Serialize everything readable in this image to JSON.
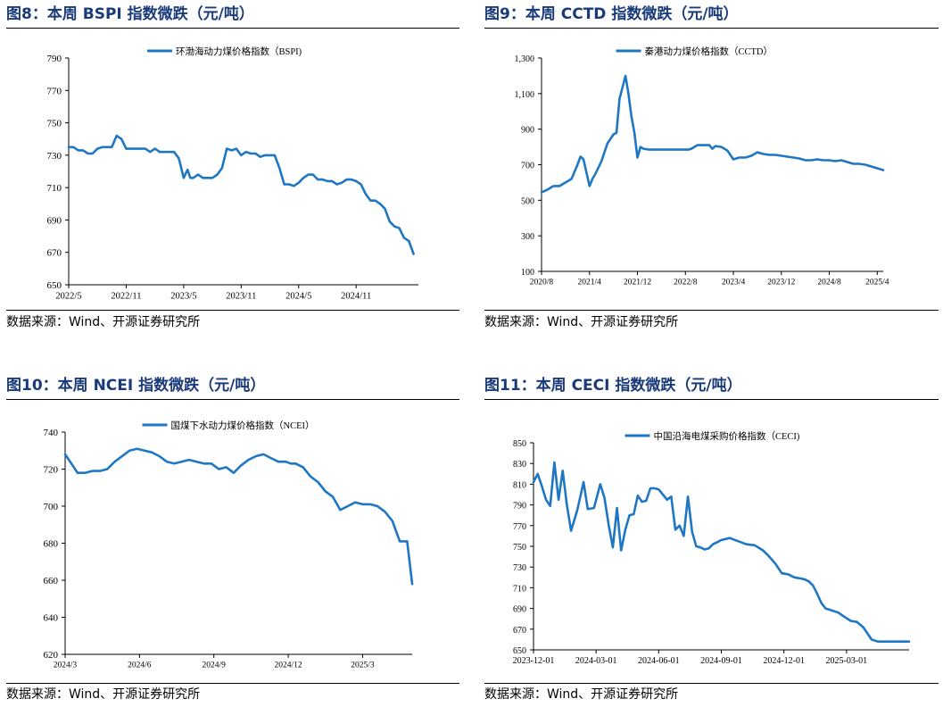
{
  "panels": [
    {
      "title": "图8：本周 BSPI 指数微跌（元/吨）",
      "source": "数据来源：Wind、开源证券研究所",
      "chart_data": {
        "type": "line",
        "legend": "环渤海动力煤价格指数（BSPI)",
        "legend_position": "top-center",
        "color": "#1f77c4",
        "ylim": [
          650,
          790
        ],
        "yticks": [
          790,
          770,
          750,
          730,
          710,
          690,
          670,
          650
        ],
        "xlim": [
          0,
          36.5
        ],
        "xtick_positions": [
          0,
          6,
          12,
          18,
          24,
          30
        ],
        "xtick_labels": [
          "2022/5",
          "2022/11",
          "2023/5",
          "2023/11",
          "2024/5",
          "2024/11"
        ],
        "x": [
          0,
          0.5,
          1,
          1.5,
          2,
          2.5,
          3,
          3.5,
          4,
          4.5,
          5,
          5.5,
          6,
          6.5,
          7,
          7.5,
          8,
          8.5,
          9,
          9.5,
          10,
          10.5,
          11,
          11.5,
          12,
          12.4,
          12.7,
          13,
          13.5,
          14,
          14.5,
          15,
          15.5,
          16,
          16.5,
          17,
          17.5,
          18,
          18.5,
          19,
          19.5,
          20,
          20.5,
          21,
          21.5,
          22,
          22.5,
          23,
          23.5,
          24,
          24.5,
          25,
          25.5,
          26,
          26.5,
          27,
          27.5,
          28,
          28.5,
          29,
          29.5,
          30,
          30.5,
          31,
          31.5,
          32,
          32.5,
          33,
          33.5,
          34,
          34.5,
          35,
          35.5,
          36
        ],
        "y": [
          735,
          735,
          733,
          733,
          731,
          731,
          734,
          735,
          735,
          735,
          742,
          740,
          734,
          734,
          734,
          734,
          734,
          732,
          734,
          732,
          732,
          732,
          732,
          728,
          716,
          721,
          716,
          716,
          718,
          716,
          716,
          716,
          718,
          722,
          734,
          733,
          734,
          730,
          732,
          731,
          731,
          729,
          730,
          730,
          730,
          722,
          712,
          712,
          711,
          713,
          716,
          718,
          718,
          715,
          715,
          714,
          714,
          712,
          713,
          715,
          715,
          714,
          712,
          706,
          702,
          702,
          700,
          697,
          689,
          686,
          685,
          679,
          677,
          669
        ]
      }
    },
    {
      "title": "图9：本周 CCTD 指数微跌（元/吨）",
      "source": "数据来源：Wind、开源证券研究所",
      "chart_data": {
        "type": "line",
        "legend": "秦港动力煤价格指数（CCTD）",
        "legend_position": "top-center",
        "color": "#1f77c4",
        "ylim": [
          100,
          1300
        ],
        "yticks": [
          1300,
          1100,
          900,
          700,
          500,
          300,
          100
        ],
        "xlim": [
          0,
          57
        ],
        "xtick_positions": [
          0,
          8,
          16,
          24,
          32,
          40,
          48,
          56
        ],
        "xtick_labels": [
          "2020/8",
          "2021/4",
          "2021/12",
          "2022/8",
          "2023/4",
          "2023/12",
          "2024/8",
          "2025/4"
        ],
        "x": [
          0,
          1,
          2,
          3,
          4,
          5,
          6,
          6.5,
          7,
          8,
          8.5,
          9,
          10,
          11,
          12,
          12.5,
          13,
          14,
          14.5,
          15,
          15.5,
          16,
          16.5,
          17,
          18,
          19,
          20,
          21,
          22,
          23,
          24,
          24.5,
          25,
          26,
          27,
          28,
          28.5,
          29,
          30,
          31,
          32,
          33,
          34,
          35,
          36,
          37,
          38,
          39,
          40,
          41,
          42,
          43,
          44,
          45,
          46,
          47,
          48,
          49,
          50,
          51,
          52,
          53,
          54,
          55,
          56,
          57
        ],
        "y": [
          545,
          560,
          580,
          580,
          600,
          620,
          700,
          745,
          730,
          580,
          620,
          650,
          720,
          820,
          870,
          880,
          1070,
          1200,
          1100,
          970,
          880,
          740,
          800,
          790,
          785,
          785,
          785,
          785,
          785,
          785,
          785,
          785,
          790,
          810,
          810,
          810,
          790,
          805,
          800,
          780,
          730,
          740,
          740,
          750,
          770,
          760,
          755,
          755,
          750,
          745,
          740,
          735,
          725,
          725,
          730,
          725,
          725,
          720,
          725,
          715,
          705,
          705,
          700,
          690,
          680,
          670
        ]
      }
    },
    {
      "title": "图10：本周 NCEI 指数微跌（元/吨）",
      "source": "数据来源：Wind、开源证券研究所",
      "chart_data": {
        "type": "line",
        "legend": "国煤下水动力煤价格指数（NCEI）",
        "legend_position": "top-center",
        "color": "#1f77c4",
        "ylim": [
          620,
          740
        ],
        "yticks": [
          740,
          720,
          700,
          680,
          660,
          640,
          620
        ],
        "xlim": [
          0,
          14
        ],
        "xtick_positions": [
          0,
          3,
          6,
          9,
          12
        ],
        "xtick_labels": [
          "2024/3",
          "2024/6",
          "2024/9",
          "2024/12",
          "2025/3"
        ],
        "x": [
          0,
          0.2,
          0.5,
          0.8,
          1.1,
          1.4,
          1.7,
          2,
          2.3,
          2.6,
          2.9,
          3.2,
          3.5,
          3.8,
          4.1,
          4.4,
          4.7,
          5,
          5.3,
          5.6,
          5.9,
          6.2,
          6.5,
          6.8,
          7.1,
          7.4,
          7.7,
          8,
          8.3,
          8.6,
          8.9,
          9.1,
          9.3,
          9.6,
          9.9,
          10.2,
          10.5,
          10.8,
          11.1,
          11.4,
          11.7,
          12,
          12.3,
          12.6,
          12.9,
          13.2,
          13.5,
          13.8,
          14
        ],
        "y": [
          728,
          724,
          718,
          718,
          719,
          719,
          720,
          724,
          727,
          730,
          731,
          730,
          729,
          727,
          724,
          723,
          724,
          725,
          724,
          723,
          723,
          720,
          721,
          718,
          722,
          725,
          727,
          728,
          726,
          724,
          724,
          723,
          723,
          721,
          716,
          713,
          708,
          705,
          698,
          700,
          702,
          701,
          701,
          700,
          697,
          692,
          681,
          681,
          658
        ]
      }
    },
    {
      "title": "图11：本周 CECI 指数微跌（元/吨）",
      "source": "数据来源：Wind、开源证券研究所",
      "chart_data": {
        "type": "line",
        "legend": "中国沿海电煤采购价格指数（CECI)",
        "legend_position": "top-center",
        "color": "#1f77c4",
        "ylim": [
          650,
          850
        ],
        "yticks": [
          850,
          830,
          810,
          790,
          770,
          750,
          730,
          710,
          690,
          670,
          650
        ],
        "xlim": [
          0,
          18
        ],
        "xtick_positions": [
          0,
          3,
          6,
          9,
          12,
          15
        ],
        "xtick_labels": [
          "2023-12-01",
          "2024-03-01",
          "2024-06-01",
          "2024-09-01",
          "2024-12-01",
          "2025-03-01"
        ],
        "x": [
          0,
          0.2,
          0.4,
          0.6,
          0.8,
          1,
          1.2,
          1.4,
          1.6,
          1.8,
          2.1,
          2.4,
          2.6,
          2.9,
          3.2,
          3.4,
          3.6,
          3.8,
          4,
          4.2,
          4.4,
          4.6,
          4.8,
          5,
          5.2,
          5.4,
          5.6,
          5.8,
          6,
          6.2,
          6.4,
          6.6,
          6.8,
          7,
          7.2,
          7.4,
          7.6,
          7.8,
          8,
          8.2,
          8.4,
          8.6,
          8.8,
          9,
          9.4,
          9.8,
          10.2,
          10.6,
          11,
          11.3,
          11.6,
          11.9,
          12.2,
          12.5,
          12.8,
          13,
          13.2,
          13.4,
          13.6,
          13.8,
          14,
          14.3,
          14.6,
          14.9,
          15.2,
          15.5,
          15.8,
          16,
          16.2,
          16.5,
          16.8,
          17.1,
          17.4,
          17.7,
          18
        ],
        "y": [
          812,
          820,
          808,
          795,
          789,
          831,
          795,
          823,
          790,
          765,
          785,
          812,
          786,
          787,
          810,
          797,
          771,
          749,
          787,
          746,
          766,
          780,
          781,
          799,
          793,
          794,
          806,
          806,
          805,
          800,
          795,
          798,
          766,
          770,
          760,
          798,
          764,
          750,
          749,
          747,
          748,
          752,
          754,
          756,
          758,
          755,
          752,
          751,
          746,
          740,
          733,
          724,
          723,
          720,
          719,
          718,
          716,
          712,
          704,
          695,
          690,
          688,
          686,
          682,
          678,
          677,
          672,
          666,
          660,
          658,
          658,
          658,
          658,
          658,
          658
        ]
      }
    }
  ]
}
